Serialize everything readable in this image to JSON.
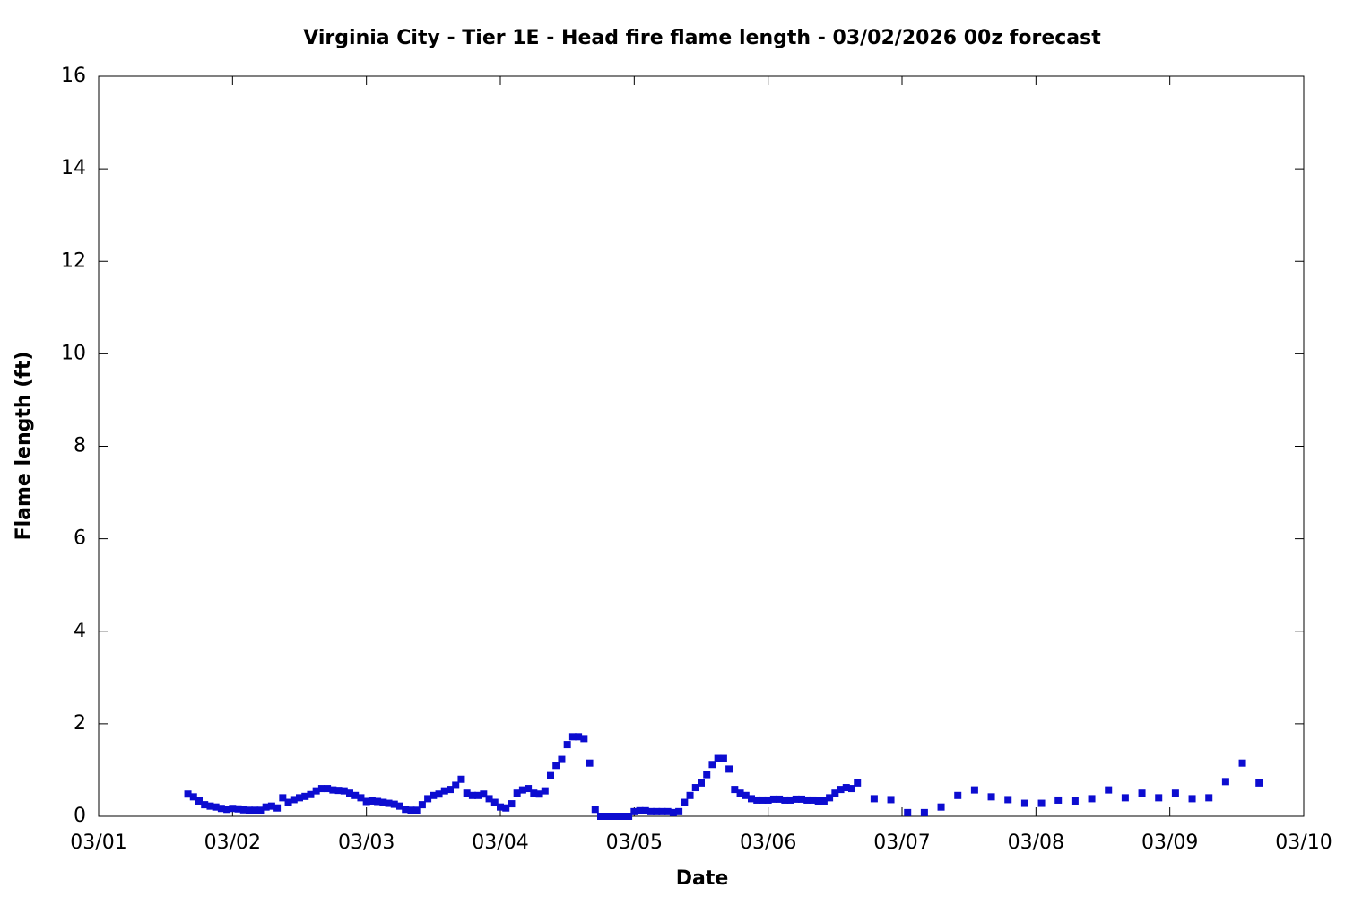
{
  "chart_data": {
    "type": "scatter",
    "title": "Virginia City - Tier 1E - Head fire flame length - 03/02/2026 00z forecast",
    "x_label": "Date",
    "y_label": "Flame length (ft)",
    "color": "#0c0cd0",
    "xlim": [
      0,
      216
    ],
    "xticks": [
      {
        "value": 0,
        "label": "03/01"
      },
      {
        "value": 24,
        "label": "03/02"
      },
      {
        "value": 48,
        "label": "03/03"
      },
      {
        "value": 72,
        "label": "03/04"
      },
      {
        "value": 96,
        "label": "03/05"
      },
      {
        "value": 120,
        "label": "03/06"
      },
      {
        "value": 144,
        "label": "03/07"
      },
      {
        "value": 168,
        "label": "03/08"
      },
      {
        "value": 192,
        "label": "03/09"
      },
      {
        "value": 216,
        "label": "03/10"
      }
    ],
    "ylim": [
      0,
      16
    ],
    "yticks": [
      0,
      2,
      4,
      6,
      8,
      10,
      12,
      14,
      16
    ],
    "x": [
      16,
      17,
      18,
      19,
      20,
      21,
      22,
      23,
      24,
      25,
      26,
      27,
      28,
      29,
      30,
      31,
      32,
      33,
      34,
      35,
      36,
      37,
      38,
      39,
      40,
      41,
      42,
      43,
      44,
      45,
      46,
      47,
      48,
      49,
      50,
      51,
      52,
      53,
      54,
      55,
      56,
      57,
      58,
      59,
      60,
      61,
      62,
      63,
      64,
      65,
      66,
      67,
      68,
      69,
      70,
      71,
      72,
      73,
      74,
      75,
      76,
      77,
      78,
      79,
      80,
      81,
      82,
      83,
      84,
      85,
      86,
      87,
      88,
      89,
      90,
      91,
      92,
      93,
      94,
      95,
      96,
      97,
      98,
      99,
      100,
      101,
      102,
      103,
      104,
      105,
      106,
      107,
      108,
      109,
      110,
      111,
      112,
      113,
      114,
      115,
      116,
      117,
      118,
      119,
      120,
      121,
      122,
      123,
      124,
      125,
      126,
      127,
      128,
      129,
      130,
      131,
      132,
      133,
      134,
      135,
      136,
      139,
      142,
      145,
      148,
      151,
      154,
      157,
      160,
      163,
      166,
      169,
      172,
      175,
      178,
      181,
      184,
      187,
      190,
      193,
      196,
      199,
      202,
      205,
      208
    ],
    "values": [
      0.48,
      0.42,
      0.33,
      0.25,
      0.22,
      0.2,
      0.17,
      0.15,
      0.17,
      0.16,
      0.14,
      0.13,
      0.13,
      0.13,
      0.2,
      0.22,
      0.18,
      0.4,
      0.3,
      0.36,
      0.4,
      0.43,
      0.47,
      0.55,
      0.6,
      0.6,
      0.57,
      0.56,
      0.55,
      0.5,
      0.45,
      0.4,
      0.32,
      0.33,
      0.32,
      0.3,
      0.28,
      0.26,
      0.22,
      0.15,
      0.13,
      0.13,
      0.25,
      0.38,
      0.45,
      0.48,
      0.55,
      0.58,
      0.67,
      0.8,
      0.5,
      0.45,
      0.45,
      0.48,
      0.38,
      0.3,
      0.2,
      0.18,
      0.27,
      0.5,
      0.57,
      0.6,
      0.5,
      0.48,
      0.55,
      0.88,
      1.1,
      1.23,
      1.55,
      1.72,
      1.72,
      1.68,
      1.15,
      0.15,
      0,
      0,
      0,
      0,
      0,
      0,
      0.1,
      0.12,
      0.12,
      0.1,
      0.1,
      0.1,
      0.1,
      0.08,
      0.1,
      0.3,
      0.45,
      0.62,
      0.72,
      0.9,
      1.12,
      1.25,
      1.25,
      1.02,
      0.58,
      0.5,
      0.45,
      0.38,
      0.35,
      0.35,
      0.35,
      0.37,
      0.37,
      0.35,
      0.35,
      0.37,
      0.37,
      0.35,
      0.35,
      0.33,
      0.33,
      0.4,
      0.5,
      0.58,
      0.62,
      0.6,
      0.72,
      0.38,
      0.36,
      0.08,
      0.08,
      0.2,
      0.45,
      0.57,
      0.42,
      0.36,
      0.28,
      0.28,
      0.35,
      0.33,
      0.38,
      0.57,
      0.4,
      0.5,
      0.4,
      0.5,
      0.38,
      0.4,
      0.75,
      1.15,
      0.72
    ]
  }
}
